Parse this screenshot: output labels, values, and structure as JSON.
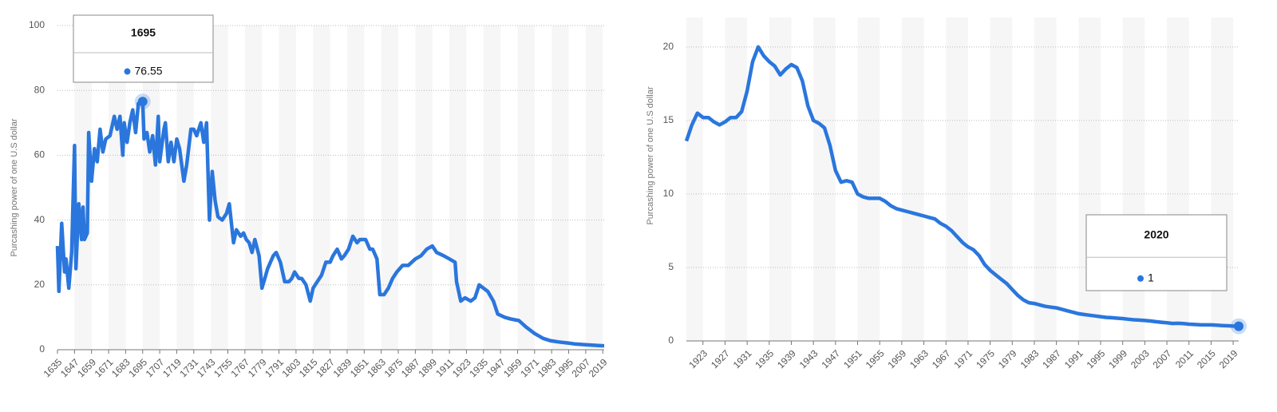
{
  "chart_data": [
    {
      "type": "line",
      "y_label": "Purcashing power of one U.S dollar",
      "color": "#2a76dd",
      "x": [
        1635,
        1636,
        1638,
        1640,
        1641,
        1643,
        1645,
        1647,
        1648,
        1650,
        1652,
        1653,
        1654,
        1656,
        1657,
        1659,
        1661,
        1663,
        1665,
        1667,
        1669,
        1672,
        1675,
        1677,
        1679,
        1681,
        1682,
        1684,
        1686,
        1688,
        1690,
        1692,
        1695,
        1696,
        1698,
        1700,
        1702,
        1704,
        1706,
        1707,
        1710,
        1711,
        1713,
        1715,
        1717,
        1719,
        1721,
        1724,
        1726,
        1729,
        1731,
        1733,
        1736,
        1738,
        1740,
        1742,
        1744,
        1746,
        1748,
        1751,
        1754,
        1756,
        1759,
        1761,
        1764,
        1766,
        1768,
        1770,
        1772,
        1774,
        1777,
        1779,
        1781,
        1783,
        1787,
        1789,
        1792,
        1795,
        1798,
        1800,
        1802,
        1805,
        1807,
        1810,
        1813,
        1815,
        1818,
        1821,
        1824,
        1827,
        1829,
        1832,
        1835,
        1837,
        1840,
        1843,
        1846,
        1848,
        1852,
        1855,
        1857,
        1860,
        1862,
        1865,
        1868,
        1871,
        1874,
        1878,
        1882,
        1887,
        1891,
        1895,
        1899,
        1902,
        1907,
        1911,
        1915,
        1916,
        1919,
        1922,
        1926,
        1929,
        1932,
        1935,
        1938,
        1942,
        1945,
        1950,
        1954,
        1960,
        1965,
        1971,
        1977,
        1982,
        1988,
        1994,
        1999,
        2008,
        2016,
        2020
      ],
      "values": [
        32,
        18,
        39,
        24,
        28,
        19,
        30,
        63,
        25,
        45,
        34,
        44,
        34,
        36,
        67,
        52,
        62,
        58,
        68,
        61,
        65,
        66,
        72,
        68,
        72,
        60,
        70,
        64,
        70,
        74,
        67,
        76,
        76.55,
        65,
        67,
        61,
        66,
        57,
        72,
        58,
        68,
        70,
        58,
        64,
        58,
        65,
        62,
        52,
        57,
        68,
        68,
        66,
        70,
        64,
        70,
        40,
        55,
        46,
        41,
        40,
        42,
        45,
        33,
        37,
        35,
        36,
        34,
        33,
        30,
        34,
        29,
        19,
        22,
        25,
        29,
        30,
        27,
        21,
        21,
        22,
        24,
        22,
        22,
        20,
        15,
        19,
        21,
        23,
        27,
        27,
        29,
        31,
        28,
        29,
        31,
        35,
        33,
        34,
        34,
        31,
        31,
        28,
        17,
        17,
        19,
        22,
        24,
        26,
        26,
        28,
        29,
        31,
        32,
        30,
        29,
        28,
        27,
        21,
        15,
        16,
        15,
        16,
        20,
        19,
        18,
        15,
        11,
        10,
        9.5,
        9,
        7,
        5,
        3.5,
        2.8,
        2.4,
        2.1,
        1.8,
        1.5,
        1.3,
        1.2
      ],
      "xlim": [
        1635,
        2020
      ],
      "xticks": [
        1635,
        1647,
        1659,
        1671,
        1683,
        1695,
        1707,
        1719,
        1731,
        1743,
        1755,
        1767,
        1779,
        1791,
        1803,
        1815,
        1827,
        1839,
        1851,
        1863,
        1875,
        1887,
        1899,
        1911,
        1923,
        1935,
        1947,
        1959,
        1971,
        1983,
        1995,
        2007,
        2019
      ],
      "ylim": [
        0,
        100
      ],
      "yticks": [
        0,
        20,
        40,
        60,
        80,
        100
      ],
      "grid": true,
      "tooltip": {
        "x": 1695,
        "value": 76.55
      }
    },
    {
      "type": "line",
      "y_label": "Purcashing power of one U.S dollar",
      "color": "#2a76dd",
      "x": [
        1920,
        1921,
        1922,
        1923,
        1924,
        1925,
        1926,
        1927,
        1928,
        1929,
        1930,
        1931,
        1932,
        1933,
        1934,
        1935,
        1936,
        1937,
        1938,
        1939,
        1940,
        1941,
        1942,
        1943,
        1944,
        1945,
        1946,
        1947,
        1948,
        1949,
        1950,
        1951,
        1952,
        1953,
        1954,
        1955,
        1956,
        1957,
        1958,
        1959,
        1960,
        1961,
        1962,
        1963,
        1964,
        1965,
        1966,
        1967,
        1968,
        1969,
        1970,
        1971,
        1972,
        1973,
        1974,
        1975,
        1976,
        1977,
        1978,
        1979,
        1980,
        1981,
        1982,
        1983,
        1984,
        1985,
        1986,
        1987,
        1988,
        1989,
        1990,
        1991,
        1992,
        1993,
        1994,
        1995,
        1996,
        1997,
        1998,
        1999,
        2000,
        2001,
        2002,
        2003,
        2004,
        2005,
        2006,
        2007,
        2008,
        2009,
        2010,
        2011,
        2012,
        2013,
        2014,
        2015,
        2016,
        2017,
        2018,
        2019,
        2020
      ],
      "values": [
        13.6,
        14.7,
        15.5,
        15.2,
        15.2,
        14.9,
        14.7,
        14.9,
        15.2,
        15.2,
        15.6,
        17.0,
        19.0,
        20.0,
        19.4,
        19.0,
        18.7,
        18.1,
        18.5,
        18.8,
        18.6,
        17.7,
        16.0,
        15.0,
        14.8,
        14.5,
        13.3,
        11.6,
        10.8,
        10.9,
        10.8,
        10.0,
        9.8,
        9.7,
        9.7,
        9.7,
        9.5,
        9.2,
        9.0,
        8.9,
        8.8,
        8.7,
        8.6,
        8.5,
        8.4,
        8.3,
        8.0,
        7.8,
        7.5,
        7.1,
        6.7,
        6.4,
        6.2,
        5.8,
        5.2,
        4.8,
        4.5,
        4.2,
        3.9,
        3.5,
        3.1,
        2.8,
        2.6,
        2.55,
        2.45,
        2.35,
        2.3,
        2.25,
        2.15,
        2.05,
        1.95,
        1.85,
        1.8,
        1.75,
        1.7,
        1.65,
        1.6,
        1.58,
        1.55,
        1.52,
        1.48,
        1.44,
        1.42,
        1.39,
        1.36,
        1.31,
        1.27,
        1.24,
        1.19,
        1.2,
        1.18,
        1.14,
        1.12,
        1.1,
        1.09,
        1.09,
        1.07,
        1.05,
        1.03,
        1.01,
        1
      ],
      "xlim": [
        1920,
        2020
      ],
      "xticks": [
        1923,
        1927,
        1931,
        1935,
        1939,
        1943,
        1947,
        1951,
        1955,
        1959,
        1963,
        1967,
        1971,
        1975,
        1979,
        1983,
        1987,
        1991,
        1995,
        1999,
        2003,
        2007,
        2011,
        2015,
        2019
      ],
      "ylim": [
        0,
        22
      ],
      "yticks": [
        0,
        5,
        10,
        15,
        20
      ],
      "grid": true,
      "tooltip": {
        "x": 2020,
        "value": 1
      }
    }
  ]
}
